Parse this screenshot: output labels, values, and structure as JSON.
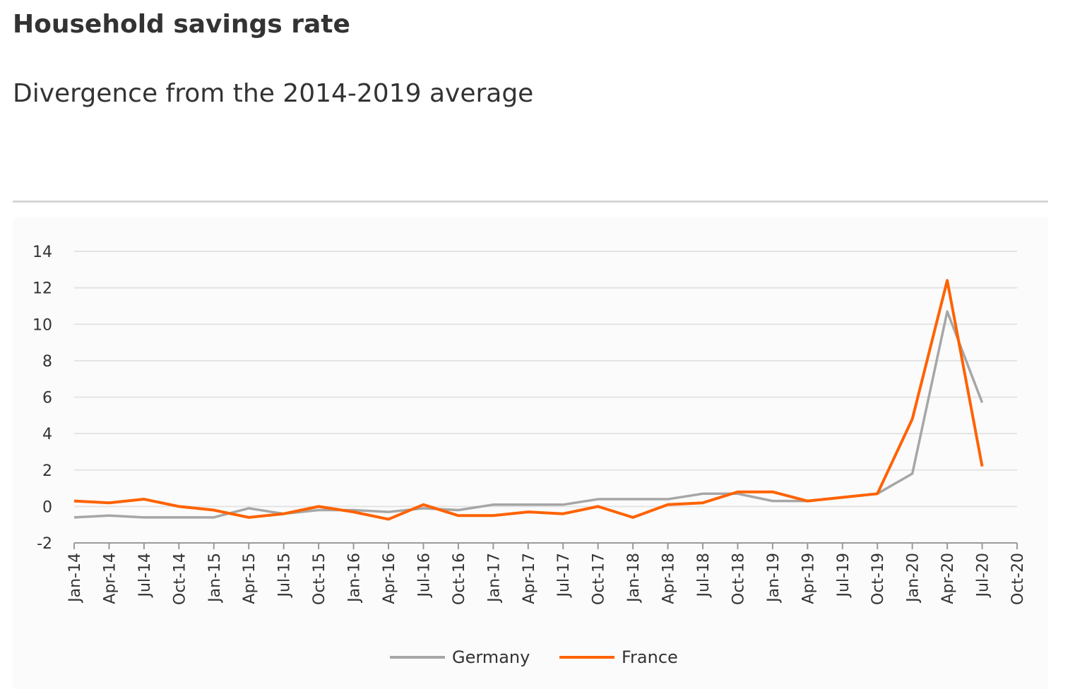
{
  "header": {
    "title": "Household savings rate",
    "subtitle": "Divergence from the 2014-2019 average"
  },
  "chart_data": {
    "type": "line",
    "title": "Household savings rate",
    "subtitle": "Divergence from the 2014-2019 average",
    "xlabel": "",
    "ylabel": "",
    "ylim": [
      -2,
      14
    ],
    "yticks": [
      -2,
      0,
      2,
      4,
      6,
      8,
      10,
      12,
      14
    ],
    "grid": "horizontal",
    "legend_position": "bottom-center",
    "categories": [
      "Jan-14",
      "Apr-14",
      "Jul-14",
      "Oct-14",
      "Jan-15",
      "Apr-15",
      "Jul-15",
      "Oct-15",
      "Jan-16",
      "Apr-16",
      "Jul-16",
      "Oct-16",
      "Jan-17",
      "Apr-17",
      "Jul-17",
      "Oct-17",
      "Jan-18",
      "Apr-18",
      "Jul-18",
      "Oct-18",
      "Jan-19",
      "Apr-19",
      "Jul-19",
      "Oct-19",
      "Jan-20",
      "Apr-20",
      "Jul-20",
      "Oct-20"
    ],
    "series": [
      {
        "name": "Germany",
        "color": "#a6a6a6",
        "values": [
          -0.6,
          -0.5,
          -0.6,
          -0.6,
          -0.6,
          -0.1,
          -0.4,
          -0.2,
          -0.2,
          -0.3,
          -0.1,
          -0.2,
          0.1,
          0.1,
          0.1,
          0.4,
          0.4,
          0.4,
          0.7,
          0.7,
          0.3,
          0.3,
          0.5,
          0.7,
          1.8,
          10.7,
          5.7,
          null
        ]
      },
      {
        "name": "France",
        "color": "#ff6200",
        "values": [
          0.3,
          0.2,
          0.4,
          0.0,
          -0.2,
          -0.6,
          -0.4,
          0.0,
          -0.3,
          -0.7,
          0.1,
          -0.5,
          -0.5,
          -0.3,
          -0.4,
          0.0,
          -0.6,
          0.1,
          0.2,
          0.8,
          0.8,
          0.3,
          0.5,
          0.7,
          4.8,
          12.4,
          2.2,
          null
        ]
      }
    ]
  }
}
